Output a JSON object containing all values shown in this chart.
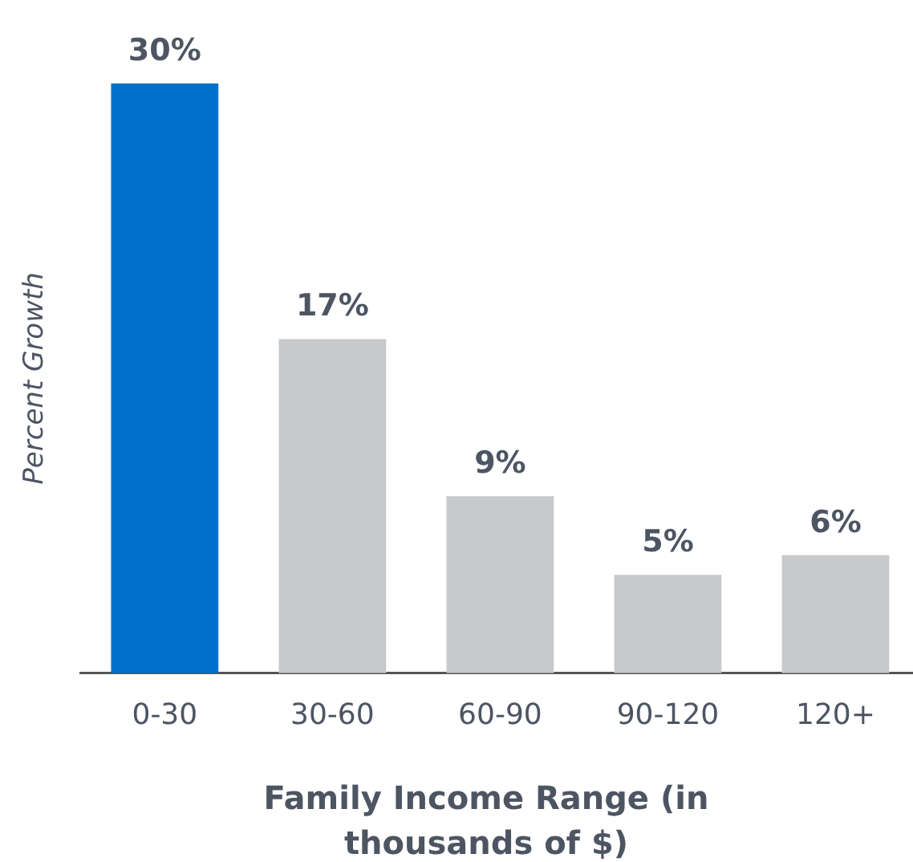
{
  "chart_data": {
    "type": "bar",
    "xlabel": "Family Income Range (in thousands of $)",
    "ylabel": "Percent Growth",
    "categories": [
      "0-30",
      "30-60",
      "60-90",
      "90-120",
      "120+"
    ],
    "values": [
      30,
      17,
      9,
      5,
      6
    ],
    "colors": [
      "#0070cc",
      "#c8c9cb",
      "#c8c9cb",
      "#c8c9cb",
      "#c8c9cb"
    ],
    "value_labels": [
      "30%",
      "17%",
      "9%",
      "5%",
      "6%"
    ],
    "grid": false,
    "legend": false,
    "tick_labels": "x"
  }
}
